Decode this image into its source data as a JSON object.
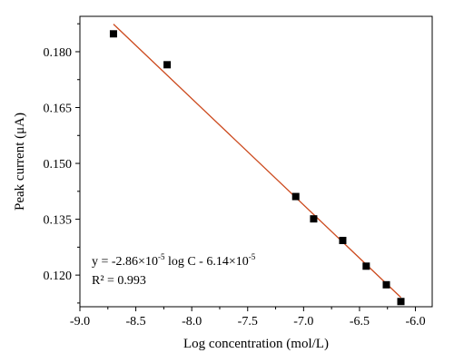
{
  "chart_data": {
    "type": "scatter",
    "xlabel": "Log concentration (mol/L)",
    "ylabel": "Peak current (μA)",
    "xlim": [
      -9.0,
      -5.85
    ],
    "ylim": [
      0.1115,
      0.1895
    ],
    "x_ticks": [
      -9.0,
      -8.5,
      -8.0,
      -7.5,
      -7.0,
      -6.5,
      -6.0
    ],
    "x_tick_labels": [
      "-9.0",
      "-8.5",
      "-8.0",
      "-7.5",
      "-7.0",
      "-6.5",
      "-6.0"
    ],
    "y_ticks": [
      0.12,
      0.135,
      0.15,
      0.165,
      0.18
    ],
    "y_tick_labels": [
      "0.120",
      "0.135",
      "0.150",
      "0.165",
      "0.180"
    ],
    "grid": false,
    "points": [
      {
        "x": -8.7,
        "y": 0.1848
      },
      {
        "x": -8.22,
        "y": 0.1765
      },
      {
        "x": -7.07,
        "y": 0.1411
      },
      {
        "x": -6.91,
        "y": 0.1351
      },
      {
        "x": -6.65,
        "y": 0.1293
      },
      {
        "x": -6.44,
        "y": 0.1224
      },
      {
        "x": -6.26,
        "y": 0.1174
      },
      {
        "x": -6.13,
        "y": 0.1129
      }
    ],
    "fit_line": {
      "x": [
        -8.7,
        -6.13
      ],
      "y": [
        0.1874,
        0.114
      ],
      "color": "#cc4a1e"
    },
    "marker_color": "#000000",
    "annotation": {
      "eq_prefix": "y = -2.86×10",
      "eq_exp1": "-5",
      "eq_mid": " log C - 6.14×10",
      "eq_exp2": "-5",
      "r2": "R² = 0.993"
    }
  }
}
